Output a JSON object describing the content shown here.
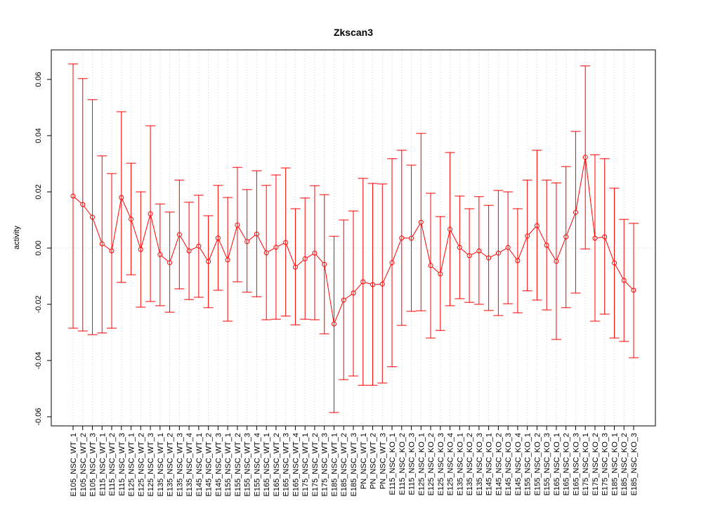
{
  "chart_data": {
    "type": "line",
    "title": "Zkscan3",
    "xlabel": "",
    "ylabel": "activity",
    "ylim": [
      -0.065,
      0.07
    ],
    "yticks": [
      -0.06,
      -0.04,
      -0.02,
      0.0,
      0.02,
      0.04,
      0.06
    ],
    "ytick_labels": [
      "-0.06",
      "-0.04",
      "-0.02",
      "0.00",
      "0.02",
      "0.04",
      "0.06"
    ],
    "grid": "vertical dotted gridlines at each category; dotted horizontal line at 0",
    "series_color": "#ff0000",
    "categories": [
      "E105_NSC_WT_1",
      "E105_NSC_WT_2",
      "E105_NSC_WT_3",
      "E115_NSC_WT_1",
      "E115_NSC_WT_2",
      "E115_NSC_WT_3",
      "E125_NSC_WT_1",
      "E125_NSC_WT_2",
      "E125_NSC_WT_3",
      "E135_NSC_WT_1",
      "E135_NSC_WT_2",
      "E135_NSC_WT_3",
      "E135_NSC_WT_4",
      "E145_NSC_WT_1",
      "E145_NSC_WT_2",
      "E145_NSC_WT_3",
      "E155_NSC_WT_1",
      "E155_NSC_WT_2",
      "E155_NSC_WT_3",
      "E155_NSC_WT_4",
      "E165_NSC_WT_1",
      "E165_NSC_WT_2",
      "E165_NSC_WT_3",
      "E165_NSC_WT_4",
      "E175_NSC_WT_1",
      "E175_NSC_WT_2",
      "E175_NSC_WT_3",
      "E185_NSC_WT_1",
      "E185_NSC_WT_2",
      "E185_NSC_WT_3",
      "PN_NSC_WT_1",
      "PN_NSC_WT_2",
      "PN_NSC_WT_3",
      "E115_NSC_KO_1",
      "E115_NSC_KO_2",
      "E115_NSC_KO_3",
      "E125_NSC_KO_1",
      "E125_NSC_KO_2",
      "E125_NSC_KO_3",
      "E125_NSC_KO_4",
      "E135_NSC_KO_1",
      "E135_NSC_KO_2",
      "E135_NSC_KO_3",
      "E145_NSC_KO_1",
      "E145_NSC_KO_2",
      "E145_NSC_KO_3",
      "E145_NSC_KO_4",
      "E155_NSC_KO_1",
      "E155_NSC_KO_2",
      "E155_NSC_KO_3",
      "E165_NSC_KO_1",
      "E165_NSC_KO_2",
      "E165_NSC_KO_3",
      "E175_NSC_KO_1",
      "E175_NSC_KO_2",
      "E175_NSC_KO_3",
      "E185_NSC_KO_1",
      "E185_NSC_KO_2",
      "E185_NSC_KO_3"
    ],
    "values": [
      0.0185,
      0.0155,
      0.011,
      0.0015,
      -0.001,
      0.018,
      0.0103,
      -0.0005,
      0.0122,
      -0.0023,
      -0.0052,
      0.0048,
      -0.001,
      0.0007,
      -0.0048,
      0.0036,
      -0.0042,
      0.0082,
      0.0023,
      0.005,
      -0.0017,
      0.0003,
      0.002,
      -0.0068,
      -0.0038,
      -0.0018,
      -0.0058,
      -0.027,
      -0.0185,
      -0.016,
      -0.012,
      -0.013,
      -0.0128,
      -0.0052,
      0.0036,
      0.0035,
      0.0092,
      -0.0062,
      -0.0092,
      0.0067,
      0.0002,
      -0.0027,
      -0.001,
      -0.0035,
      -0.0018,
      0.0002,
      -0.0045,
      0.0043,
      0.008,
      0.001,
      -0.0047,
      0.004,
      0.0127,
      0.0323,
      0.0035,
      0.004,
      -0.0053,
      -0.0115,
      -0.015
    ],
    "upper": [
      0.0655,
      0.0603,
      0.0528,
      0.0328,
      0.0265,
      0.0485,
      0.0302,
      0.02,
      0.0435,
      0.0157,
      0.0128,
      0.0242,
      0.0163,
      0.0188,
      0.0115,
      0.0223,
      0.018,
      0.0287,
      0.0208,
      0.0275,
      0.0223,
      0.026,
      0.0285,
      0.014,
      0.0178,
      0.0222,
      0.019,
      0.0042,
      0.01,
      0.0132,
      0.0248,
      0.023,
      0.0228,
      0.0318,
      0.0348,
      0.0295,
      0.0408,
      0.0195,
      0.0112,
      0.034,
      0.0185,
      0.014,
      0.0183,
      0.0152,
      0.0205,
      0.02,
      0.014,
      0.0242,
      0.0348,
      0.0242,
      0.0232,
      0.029,
      0.0415,
      0.0648,
      0.0332,
      0.0318,
      0.0213,
      0.0102,
      0.0088
    ],
    "lower": [
      -0.0285,
      -0.0295,
      -0.0308,
      -0.0302,
      -0.0285,
      -0.0122,
      -0.0095,
      -0.021,
      -0.019,
      -0.0205,
      -0.0228,
      -0.0145,
      -0.0183,
      -0.0175,
      -0.0212,
      -0.015,
      -0.026,
      -0.012,
      -0.0157,
      -0.0173,
      -0.0255,
      -0.0253,
      -0.0242,
      -0.0273,
      -0.0253,
      -0.0255,
      -0.0305,
      -0.0585,
      -0.0468,
      -0.0455,
      -0.0488,
      -0.0488,
      -0.048,
      -0.0422,
      -0.0275,
      -0.0225,
      -0.0223,
      -0.032,
      -0.0293,
      -0.0205,
      -0.018,
      -0.0193,
      -0.02,
      -0.0222,
      -0.024,
      -0.0198,
      -0.023,
      -0.0152,
      -0.0185,
      -0.022,
      -0.0325,
      -0.0212,
      -0.016,
      -0.0003,
      -0.026,
      -0.0235,
      -0.032,
      -0.0332,
      -0.039
    ]
  }
}
